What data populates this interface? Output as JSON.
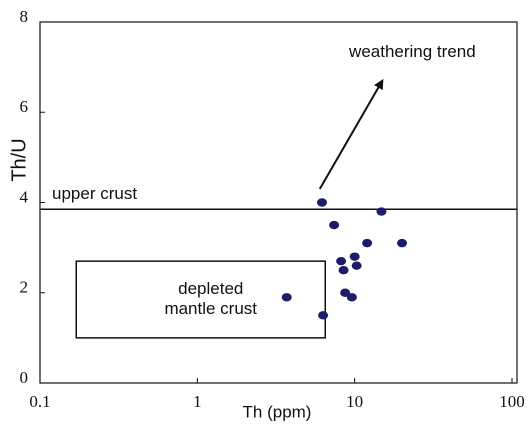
{
  "chart_data": {
    "type": "scatter",
    "x_label": "Th (ppm)",
    "y_label": "Th/U",
    "log_x": true,
    "xlim": [
      0.1,
      100
    ],
    "xticks": [
      0.1,
      1,
      10,
      100
    ],
    "ylim": [
      0,
      8
    ],
    "yticks": [
      0,
      2,
      4,
      6,
      8
    ],
    "color": "#1c1c6b",
    "x": [
      6.2,
      7.4,
      14.8,
      12,
      20,
      8.2,
      10,
      8.5,
      10.3,
      3.7,
      8.7,
      9.6,
      6.3
    ],
    "values": [
      4.0,
      3.5,
      3.8,
      3.1,
      3.1,
      2.7,
      2.8,
      2.5,
      2.6,
      1.9,
      2.0,
      1.9,
      1.5
    ],
    "reference_line": {
      "label": "upper crust",
      "value": 3.85
    },
    "region": {
      "label": [
        "depleted",
        "mantle crust"
      ],
      "x": [
        0.17,
        6.5
      ],
      "y": [
        1.0,
        2.7
      ]
    },
    "arrow": {
      "label": "weathering trend",
      "x": [
        6.0,
        15
      ],
      "y": [
        4.3,
        6.7
      ]
    }
  }
}
